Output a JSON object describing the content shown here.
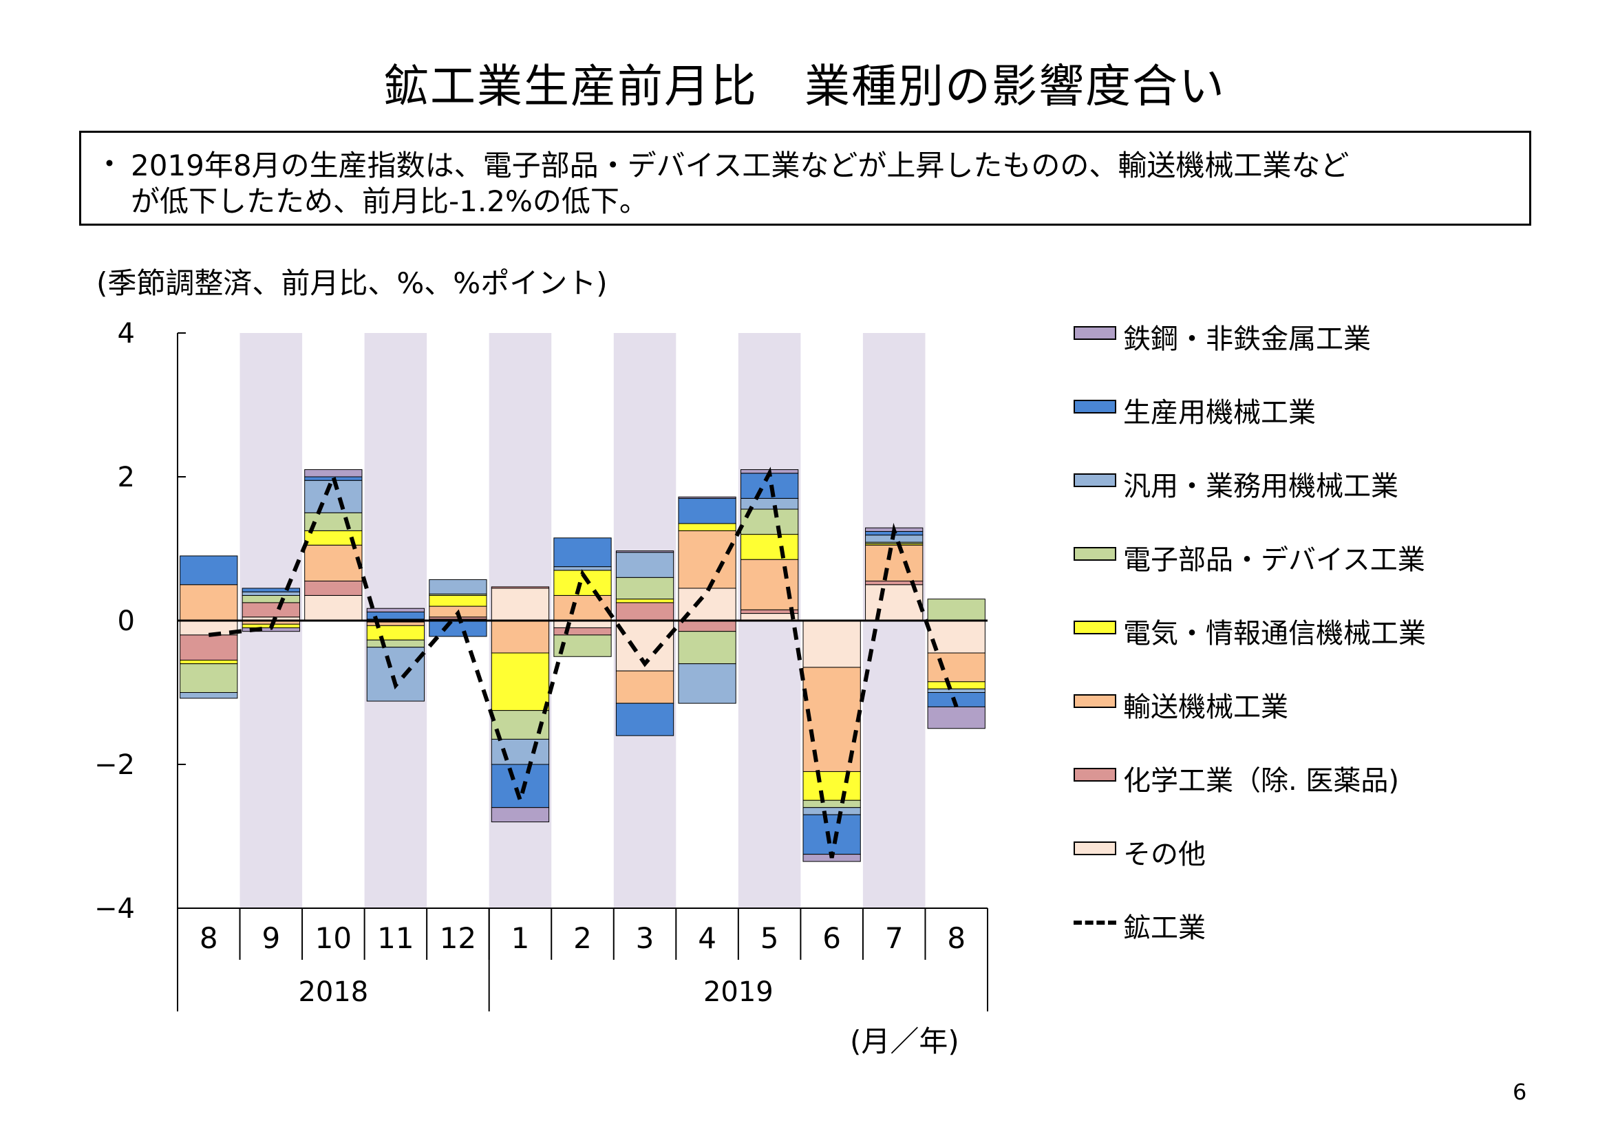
{
  "title": "鉱工業生産前月比　業種別の影響度合い",
  "summary": {
    "bullet": "・",
    "line1": "2019年8月の生産指数は、電子部品・デバイス工業などが上昇したものの、輸送機械工業など",
    "line2": "が低下したため、前月比-1.2%の低下。"
  },
  "unit_label": "(季節調整済、前月比、%、%ポイント)",
  "axis_unit": "(月／年)",
  "page_number": "6",
  "chart_data": {
    "type": "bar",
    "stacked": true,
    "categories": [
      "8",
      "9",
      "10",
      "11",
      "12",
      "1",
      "2",
      "3",
      "4",
      "5",
      "6",
      "7",
      "8"
    ],
    "year_groups": [
      {
        "label": "2018",
        "months": [
          "8",
          "9",
          "10",
          "11",
          "12"
        ]
      },
      {
        "label": "2019",
        "months": [
          "1",
          "2",
          "3",
          "4",
          "5",
          "6",
          "7",
          "8"
        ]
      }
    ],
    "ylim": [
      -4,
      4
    ],
    "yticks": [
      4,
      2,
      0,
      -2,
      -4
    ],
    "ytick_labels": [
      "4",
      "2",
      "0",
      "−2",
      "−4"
    ],
    "shaded_categories": [
      1,
      3,
      5,
      7,
      9,
      11
    ],
    "series": [
      {
        "name": "その他",
        "color": "#fbe5d6",
        "values": [
          -0.2,
          0.05,
          0.35,
          0.02,
          0.02,
          0.45,
          -0.1,
          -0.7,
          0.45,
          0.1,
          -0.65,
          0.5,
          -0.45
        ]
      },
      {
        "name": "化学工業（除. 医薬品)",
        "color": "#da9694",
        "values": [
          -0.35,
          0.2,
          0.2,
          -0.02,
          0.03,
          0.02,
          -0.1,
          0.25,
          -0.15,
          0.05,
          0.0,
          0.05,
          0.0
        ]
      },
      {
        "name": "輸送機械工業",
        "color": "#fabf8f",
        "values": [
          0.5,
          -0.05,
          0.5,
          -0.05,
          0.15,
          -0.45,
          0.35,
          -0.45,
          0.8,
          0.7,
          -1.45,
          0.5,
          -0.4
        ]
      },
      {
        "name": "電気・情報通信機械工業",
        "color": "#ffff33",
        "values": [
          -0.05,
          -0.05,
          0.2,
          -0.2,
          0.15,
          -0.8,
          0.35,
          0.05,
          0.1,
          0.35,
          -0.4,
          0.02,
          -0.1
        ]
      },
      {
        "name": "電子部品・デバイス工業",
        "color": "#c4d79b",
        "values": [
          -0.4,
          0.1,
          0.25,
          -0.1,
          0.02,
          -0.4,
          -0.3,
          0.3,
          -0.45,
          0.35,
          -0.1,
          0.02,
          0.3
        ]
      },
      {
        "name": "汎用・業務用機械工業",
        "color": "#95b3d7",
        "values": [
          -0.08,
          0.05,
          0.45,
          -0.75,
          0.2,
          -0.35,
          0.05,
          0.35,
          -0.55,
          0.15,
          -0.1,
          0.1,
          -0.05
        ]
      },
      {
        "name": "生産用機械工業",
        "color": "#4a86d4",
        "values": [
          0.4,
          0.05,
          0.05,
          0.1,
          -0.22,
          -0.6,
          0.4,
          -0.45,
          0.35,
          0.35,
          -0.55,
          0.05,
          -0.2
        ]
      },
      {
        "name": "鉄鋼・非鉄金属工業",
        "color": "#b1a0c7",
        "values": [
          0.0,
          -0.05,
          0.1,
          0.05,
          0.0,
          -0.2,
          0.0,
          0.02,
          0.02,
          0.05,
          -0.1,
          0.05,
          -0.3
        ]
      }
    ],
    "line_series": {
      "name": "鉱工業",
      "color": "#000000",
      "style": "dashed",
      "values": [
        -0.2,
        -0.1,
        2.0,
        -0.9,
        0.1,
        -2.5,
        0.65,
        -0.6,
        0.4,
        2.05,
        -3.3,
        1.25,
        -1.2
      ]
    },
    "legend_order": [
      "鉄鋼・非鉄金属工業",
      "生産用機械工業",
      "汎用・業務用機械工業",
      "電子部品・デバイス工業",
      "電気・情報通信機械工業",
      "輸送機械工業",
      "化学工業（除. 医薬品)",
      "その他",
      "鉱工業"
    ],
    "legend_position": "right"
  }
}
